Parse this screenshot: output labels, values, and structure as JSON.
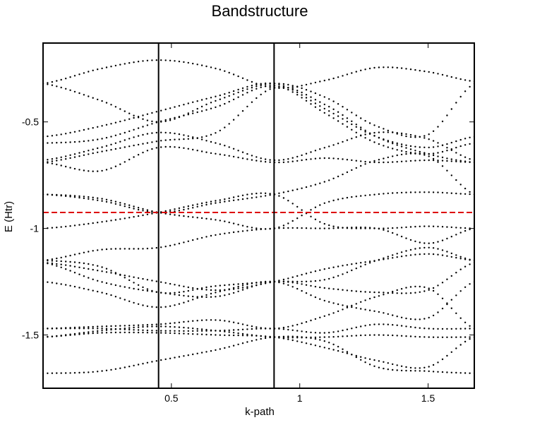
{
  "chart_data": {
    "type": "scatter",
    "title": "Bandstructure",
    "xlabel": "k-path",
    "ylabel": "E (Htr)",
    "xlim": [
      0,
      1.68
    ],
    "ylim": [
      -1.75,
      -0.13
    ],
    "xticks": [
      {
        "value": 0.5,
        "label": "0.5"
      },
      {
        "value": 1,
        "label": "1"
      },
      {
        "value": 1.5,
        "label": "1.5"
      }
    ],
    "yticks": [
      {
        "value": -0.5,
        "label": "-0.5"
      },
      {
        "value": -1,
        "label": "-1"
      },
      {
        "value": -1.5,
        "label": "-1.5"
      }
    ],
    "grid": false,
    "legend": "none",
    "high_symmetry_points": [
      0.45,
      0.9
    ],
    "fermi_level": -0.925,
    "colors": {
      "bands": "#000000",
      "fermi": "#dd0000",
      "symmetry_lines": "#000000"
    },
    "bands": [
      {
        "values": [
          -0.32,
          -0.25,
          -0.21,
          -0.25,
          -0.34,
          -0.305,
          -0.245,
          -0.265,
          -0.31
        ]
      },
      {
        "values": [
          -0.32,
          -0.4,
          -0.5,
          -0.4,
          -0.32,
          -0.385,
          -0.52,
          -0.56,
          -0.32
        ]
      },
      {
        "values": [
          -0.57,
          -0.52,
          -0.45,
          -0.38,
          -0.32,
          -0.44,
          -0.57,
          -0.62,
          -0.57
        ]
      },
      {
        "values": [
          -0.6,
          -0.58,
          -0.5,
          -0.43,
          -0.33,
          -0.46,
          -0.6,
          -0.65,
          -0.6
        ]
      },
      {
        "values": [
          -0.68,
          -0.62,
          -0.55,
          -0.6,
          -0.68,
          -0.62,
          -0.55,
          -0.58,
          -0.68
        ]
      },
      {
        "values": [
          -0.69,
          -0.64,
          -0.59,
          -0.55,
          -0.34,
          -0.42,
          -0.57,
          -0.65,
          -0.69
        ]
      },
      {
        "values": [
          -0.69,
          -0.73,
          -0.62,
          -0.65,
          -0.69,
          -0.67,
          -0.69,
          -0.68,
          -0.69
        ]
      },
      {
        "values": [
          -0.84,
          -0.87,
          -0.925,
          -0.88,
          -0.84,
          -0.78,
          -0.68,
          -0.66,
          -0.84
        ]
      },
      {
        "values": [
          -0.84,
          -0.86,
          -0.925,
          -0.96,
          -1.0,
          -0.88,
          -0.84,
          -0.83,
          -0.84
        ]
      },
      {
        "values": [
          -1.0,
          -0.97,
          -0.925,
          -0.87,
          -0.84,
          -0.98,
          -1.0,
          -0.99,
          -1.0
        ]
      },
      {
        "values": [
          -1.15,
          -1.1,
          -1.09,
          -1.03,
          -1.0,
          -1.0,
          -1.0,
          -1.07,
          -1.0
        ]
      },
      {
        "values": [
          -1.15,
          -1.18,
          -1.3,
          -1.27,
          -1.25,
          -1.24,
          -1.15,
          -1.09,
          -1.15
        ]
      },
      {
        "values": [
          -1.16,
          -1.2,
          -1.25,
          -1.29,
          -1.25,
          -1.19,
          -1.15,
          -1.12,
          -1.15
        ]
      },
      {
        "values": [
          -1.16,
          -1.25,
          -1.3,
          -1.32,
          -1.25,
          -1.28,
          -1.3,
          -1.29,
          -1.16
        ]
      },
      {
        "values": [
          -1.25,
          -1.3,
          -1.37,
          -1.3,
          -1.25,
          -1.34,
          -1.39,
          -1.42,
          -1.25
        ]
      },
      {
        "values": [
          -1.47,
          -1.46,
          -1.45,
          -1.43,
          -1.47,
          -1.41,
          -1.32,
          -1.28,
          -1.47
        ]
      },
      {
        "values": [
          -1.47,
          -1.47,
          -1.48,
          -1.48,
          -1.47,
          -1.49,
          -1.45,
          -1.47,
          -1.47
        ]
      },
      {
        "values": [
          -1.51,
          -1.48,
          -1.46,
          -1.48,
          -1.51,
          -1.51,
          -1.5,
          -1.51,
          -1.51
        ]
      },
      {
        "values": [
          -1.51,
          -1.49,
          -1.49,
          -1.5,
          -1.51,
          -1.56,
          -1.62,
          -1.65,
          -1.51
        ]
      },
      {
        "values": [
          -1.68,
          -1.67,
          -1.62,
          -1.57,
          -1.51,
          -1.53,
          -1.65,
          -1.67,
          -1.68
        ]
      }
    ]
  }
}
